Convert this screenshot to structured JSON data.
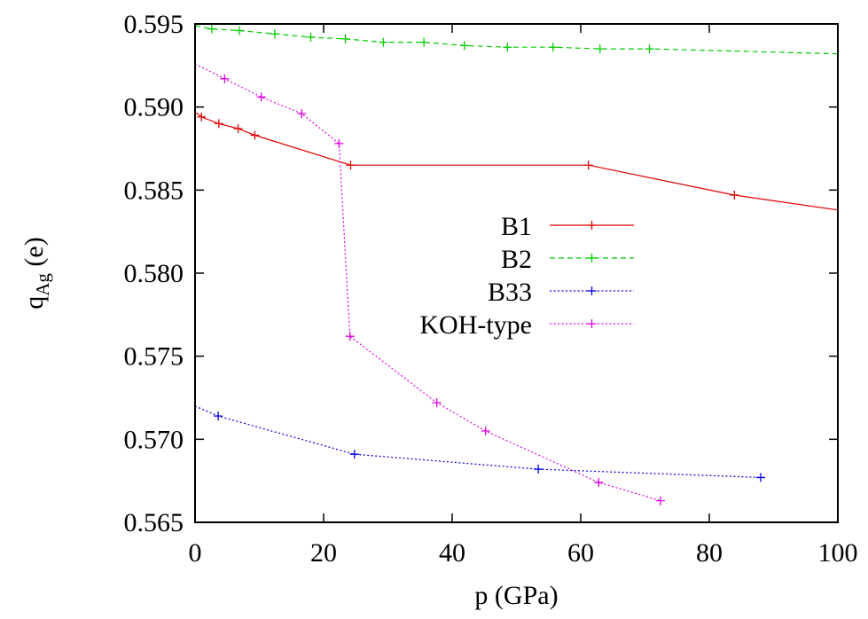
{
  "chart_data": {
    "type": "line",
    "xlabel": "p (GPa)",
    "ylabel": {
      "main": "q",
      "sub": "Ag",
      "unit": " (e)"
    },
    "xlim": [
      0,
      100
    ],
    "ylim": [
      0.565,
      0.595
    ],
    "xticks": [
      0,
      20,
      40,
      60,
      80,
      100
    ],
    "yticks": [
      0.565,
      0.57,
      0.575,
      0.58,
      0.585,
      0.59,
      0.595
    ],
    "xtick_labels": [
      "0",
      "20",
      "40",
      "60",
      "80",
      "100"
    ],
    "ytick_labels": [
      "0.565",
      "0.570",
      "0.575",
      "0.580",
      "0.585",
      "0.590",
      "0.595"
    ],
    "grid": false,
    "legend_position": "center",
    "series": [
      {
        "name": "B1",
        "color": "#e00000",
        "dash": "solid",
        "x": [
          0,
          1,
          3.7,
          6.7,
          9.3,
          24.2,
          61.2,
          83.9,
          100
        ],
        "y": [
          0.5897,
          0.5894,
          0.589,
          0.5887,
          0.5883,
          0.5865,
          0.5865,
          0.5847,
          0.5838
        ],
        "marked": [
          false,
          true,
          true,
          true,
          true,
          true,
          true,
          true,
          false
        ]
      },
      {
        "name": "B2",
        "color": "#00cc00",
        "dash": "dashed",
        "x": [
          0,
          2.6,
          6.9,
          12.4,
          18.0,
          23.4,
          29.3,
          35.6,
          41.9,
          48.6,
          55.7,
          63.0,
          70.7,
          100
        ],
        "y": [
          0.5949,
          0.5947,
          0.5946,
          0.5944,
          0.5942,
          0.5941,
          0.5939,
          0.5939,
          0.5937,
          0.5936,
          0.5936,
          0.5935,
          0.5935,
          0.5932
        ],
        "marked": [
          false,
          true,
          true,
          true,
          true,
          true,
          true,
          true,
          true,
          true,
          true,
          true,
          true,
          false
        ]
      },
      {
        "name": "B33",
        "color": "#0000e0",
        "dash": "dotted",
        "x": [
          0,
          3.6,
          24.8,
          53.4,
          88.0
        ],
        "y": [
          0.572,
          0.5714,
          0.5691,
          0.5682,
          0.5677
        ],
        "marked": [
          false,
          true,
          true,
          true,
          true
        ]
      },
      {
        "name": "KOH-type",
        "color": "#e000e0",
        "dash": "dotted",
        "x": [
          0,
          4.6,
          10.3,
          16.6,
          22.4,
          24.1,
          37.6,
          45.2,
          62.8,
          72.4
        ],
        "y": [
          0.5926,
          0.5917,
          0.5906,
          0.5896,
          0.5878,
          0.5762,
          0.5722,
          0.5705,
          0.5674,
          0.5663
        ],
        "marked": [
          false,
          true,
          true,
          true,
          true,
          true,
          true,
          true,
          true,
          true
        ]
      }
    ]
  }
}
